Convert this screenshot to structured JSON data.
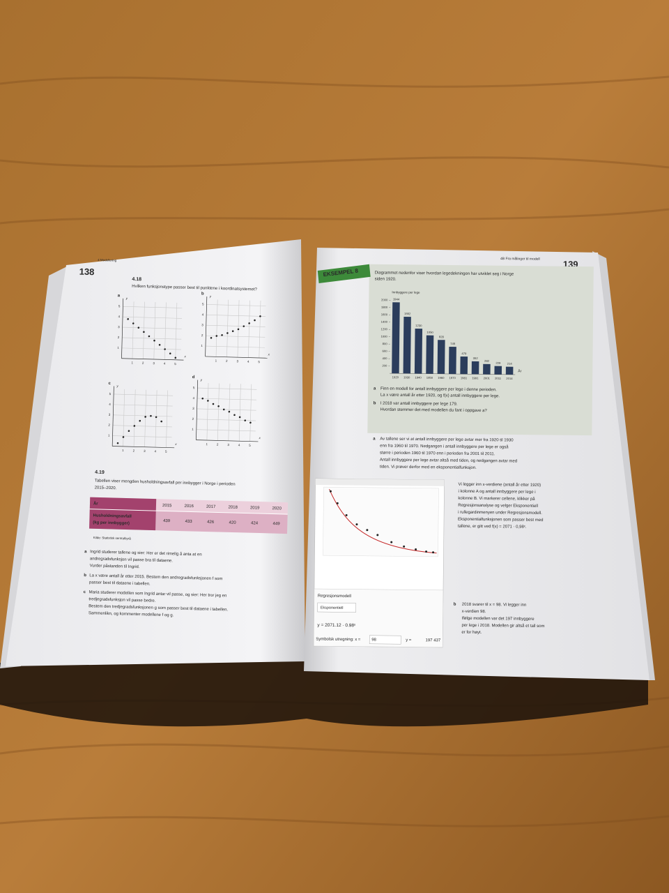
{
  "left_page": {
    "page_number": "138",
    "running_head": "4 Modellering",
    "exercise_4_18": {
      "number": "4.18",
      "question": "Hvilken funksjonstype passer best til punktene i koordinatsystemet?",
      "plots": [
        {
          "type": "scatter",
          "label": "a",
          "x_label": "x",
          "y_label": "y",
          "x": [
            0.5,
            1,
            1.5,
            2,
            2.5,
            3,
            3.5,
            4,
            4.5,
            5
          ],
          "y": [
            3.8,
            3.4,
            3,
            2.6,
            2.2,
            1.8,
            1.4,
            1,
            0.6,
            0.2
          ],
          "xlim": [
            0,
            5.5
          ],
          "ylim": [
            0,
            5.5
          ],
          "xticks": [
            1,
            2,
            3,
            4,
            5
          ],
          "yticks": [
            1,
            2,
            3,
            4,
            5
          ],
          "grid": true,
          "color": "#222222"
        },
        {
          "type": "scatter",
          "label": "b",
          "x_label": "x",
          "y_label": "y",
          "x": [
            0.5,
            1,
            1.5,
            2,
            2.5,
            3,
            3.5,
            4,
            4.5,
            5
          ],
          "y": [
            1.8,
            2,
            2.1,
            2.3,
            2.5,
            2.7,
            3,
            3.3,
            3.6,
            4
          ],
          "xlim": [
            0,
            5.5
          ],
          "ylim": [
            0,
            5.5
          ],
          "xticks": [
            1,
            2,
            3,
            4,
            5
          ],
          "yticks": [
            1,
            2,
            3,
            4,
            5
          ],
          "grid": true,
          "color": "#222222"
        },
        {
          "type": "scatter",
          "label": "c",
          "x_label": "x",
          "y_label": "y",
          "x": [
            0.5,
            1,
            1.5,
            2,
            2.5,
            3,
            3.5,
            4,
            4.5
          ],
          "y": [
            0.3,
            0.9,
            1.5,
            2,
            2.5,
            2.9,
            3,
            2.9,
            2.5
          ],
          "xlim": [
            0,
            5.5
          ],
          "ylim": [
            0,
            5.5
          ],
          "xticks": [
            1,
            2,
            3,
            4,
            5
          ],
          "yticks": [
            1,
            2,
            3,
            4,
            5
          ],
          "grid": true,
          "color": "#222222"
        },
        {
          "type": "scatter",
          "label": "d",
          "x_label": "x",
          "y_label": "y",
          "x": [
            0.5,
            1,
            1.5,
            2,
            2.5,
            3,
            3.5,
            4,
            4.5,
            5
          ],
          "y": [
            4,
            3.8,
            3.5,
            3.3,
            3,
            2.8,
            2.5,
            2.3,
            2,
            1.8
          ],
          "xlim": [
            0,
            5.5
          ],
          "ylim": [
            0,
            5.5
          ],
          "xticks": [
            1,
            2,
            3,
            4,
            5
          ],
          "yticks": [
            1,
            2,
            3,
            4,
            5
          ],
          "grid": true,
          "color": "#222222"
        }
      ]
    },
    "exercise_4_19": {
      "number": "4.19",
      "intro": [
        "Tabellen viser mengden husholdningsavfall per innbygger i Norge i perioden",
        "2015–2020."
      ],
      "table": {
        "header": [
          "År",
          "2015",
          "2016",
          "2017",
          "2018",
          "2019",
          "2020"
        ],
        "row_label": [
          "Husholdningsavfall",
          "(kg per innbygger)"
        ],
        "values": [
          439,
          433,
          426,
          420,
          424,
          449
        ]
      },
      "source": "Kilde: Statistisk sentralbyrå",
      "tasks": [
        {
          "letter": "a",
          "lines": [
            "Ingrid studerer tallene og sier: Her er det rimelig å anta at en",
            "andregradsfunksjon vil passe bra til dataene.",
            "Vurder påstanden til Ingrid."
          ]
        },
        {
          "letter": "b",
          "lines": [
            "La x være antall år etter 2015. Bestem den andregradsfunksjonen f som",
            "passer best til dataene i tabellen."
          ]
        },
        {
          "letter": "c",
          "lines": [
            "Maria studerer modellen som Ingrid antar vil passe, og sier: Her tror jeg en",
            "tredjegradsfunksjon vil passe bedre.",
            "Bestem den tredjegradsfunksjonen g som passer best til dataene i tabellen.",
            "Sammenlikn, og kommenter modellene f og g."
          ]
        }
      ]
    }
  },
  "right_page": {
    "page_number": "139",
    "running_head": "4B Fra målinger til modell",
    "example_label": "EKSEMPEL 8",
    "intro": [
      "Diagrammet nedenfor viser hvordan legedekningen har utviklet seg i Norge",
      "siden 1920."
    ],
    "chart": {
      "type": "bar",
      "y_label": "Innbyggere per lege",
      "x_label": "År",
      "categories": [
        "1920",
        "1930",
        "1940",
        "1950",
        "1960",
        "1970",
        "1981",
        "1991",
        "2001",
        "2011",
        "2014"
      ],
      "values": [
        1944,
        1552,
        1230,
        1050,
        928,
        745,
        479,
        352,
        282,
        229,
        214
      ],
      "ylim": [
        0,
        2100
      ],
      "yticks": [
        200,
        400,
        600,
        800,
        1000,
        1200,
        1400,
        1600,
        1800,
        2000
      ],
      "color": "#2b3d5c"
    },
    "tasks": [
      {
        "letter": "a",
        "lines": [
          "Finn en modell for antall innbyggere per lege i denne perioden.",
          "La x være antall år etter 1920, og f(x) antall innbyggere per lege."
        ]
      },
      {
        "letter": "b",
        "lines": [
          "I 2018 var antall innbyggere per lege 179.",
          "Hvordan stemmer det med modellen du fant i oppgave a?"
        ]
      }
    ],
    "solution_a": {
      "letter": "a",
      "lines": [
        "Av tallene ser vi at antall innbyggere per lege avtar mer fra 1920 til 1930",
        "enn fra 1960 til 1970. Nedgangen i antall innbyggere per lege er også",
        "større i perioden 1960 til 1970 enn i perioden fra 2001 til 2011.",
        "Antall innbyggere per lege avtar altså med tiden, og nedgangen avtar med",
        "tiden. Vi prøver derfor med en eksponentialfunksjon."
      ]
    },
    "side_text": [
      "Vi legger inn x-verdiene (antall år etter 1920)",
      "i kolonne A og antall innbyggere per lege i",
      "kolonne B. Vi markerer cellene, klikker på",
      "Regresjonsanalyse og velger Eksponentiell",
      "i rullegardinmenyen under Regresjonsmodell.",
      "Eksponentialfunksjonen som passer best med",
      "tallene, er gitt ved f(x) = 2071 · 0,98ˣ."
    ],
    "screenshot": {
      "model_heading": "Regresjonsmodell",
      "model_choice": "Eksponentiell",
      "formula": "y = 2071.12 · 0.98ˣ",
      "symbolic_label": "Symbolsk utregning: x =",
      "x_input": "98",
      "y_label": "y =",
      "y_result": "197 437"
    },
    "solution_b": {
      "letter": "b",
      "lines": [
        "2018 svarer til x = 98. Vi legger inn",
        "x-verdien 98.",
        "Ifølge modellen var det 197 innbyggere",
        "per lege i 2018. Modellen gir altså et tall som",
        "er for høyt."
      ]
    }
  }
}
